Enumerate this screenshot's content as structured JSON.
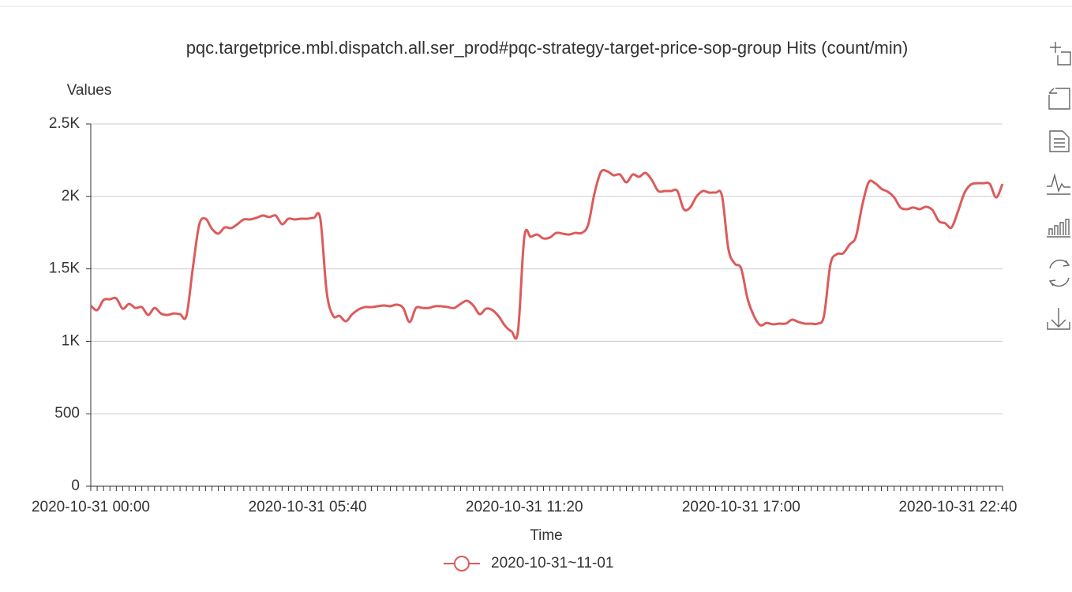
{
  "chart_data": {
    "type": "line",
    "title": "pqc.targetprice.mbl.dispatch.all.ser_prod#pqc-strategy-target-price-sop-group Hits (count/min)",
    "y_label": "Values",
    "x_label": "Time",
    "categories": [
      "2020-10-31 00:00",
      null,
      null,
      null,
      null,
      null,
      null,
      null,
      null,
      null,
      null,
      null,
      null,
      null,
      null,
      null,
      null,
      null,
      null,
      null,
      null,
      null,
      null,
      null,
      null,
      null,
      null,
      null,
      null,
      null,
      null,
      null,
      null,
      null,
      "2020-10-31 05:40",
      null,
      null,
      null,
      null,
      null,
      null,
      null,
      null,
      null,
      null,
      null,
      null,
      null,
      null,
      null,
      null,
      null,
      null,
      null,
      null,
      null,
      null,
      null,
      null,
      null,
      null,
      null,
      null,
      null,
      null,
      null,
      null,
      null,
      "2020-10-31 11:20",
      null,
      null,
      null,
      null,
      null,
      null,
      null,
      null,
      null,
      null,
      null,
      null,
      null,
      null,
      null,
      null,
      null,
      null,
      null,
      null,
      null,
      null,
      null,
      null,
      null,
      null,
      null,
      null,
      null,
      null,
      null,
      null,
      null,
      "2020-10-31 17:00",
      null,
      null,
      null,
      null,
      null,
      null,
      null,
      null,
      null,
      null,
      null,
      null,
      null,
      null,
      null,
      null,
      null,
      null,
      null,
      null,
      null,
      null,
      null,
      null,
      null,
      null,
      null,
      null,
      null,
      null,
      null,
      null,
      null,
      "2020-10-31 22:40",
      null,
      null,
      null,
      null,
      null,
      null,
      null
    ],
    "series": [
      {
        "name": "2020-10-31~11-01",
        "color": "#dc5b5b",
        "values": [
          1247,
          1215,
          1285,
          1290,
          1296,
          1225,
          1258,
          1230,
          1236,
          1182,
          1230,
          1192,
          1182,
          1192,
          1187,
          1176,
          1503,
          1803,
          1846,
          1776,
          1743,
          1786,
          1781,
          1808,
          1841,
          1841,
          1852,
          1868,
          1857,
          1868,
          1808,
          1846,
          1841,
          1846,
          1846,
          1852,
          1846,
          1340,
          1176,
          1176,
          1138,
          1187,
          1220,
          1236,
          1236,
          1242,
          1247,
          1242,
          1253,
          1230,
          1133,
          1230,
          1230,
          1230,
          1242,
          1242,
          1236,
          1230,
          1258,
          1280,
          1247,
          1187,
          1225,
          1215,
          1171,
          1106,
          1068,
          1068,
          1721,
          1721,
          1737,
          1710,
          1716,
          1748,
          1743,
          1737,
          1748,
          1748,
          1803,
          2021,
          2168,
          2173,
          2146,
          2151,
          2097,
          2151,
          2135,
          2162,
          2113,
          2037,
          2037,
          2037,
          2037,
          1912,
          1923,
          1999,
          2037,
          2026,
          2026,
          2004,
          1639,
          1536,
          1503,
          1296,
          1176,
          1111,
          1127,
          1117,
          1122,
          1122,
          1149,
          1133,
          1122,
          1122,
          1122,
          1176,
          1530,
          1601,
          1607,
          1667,
          1721,
          1939,
          2097,
          2091,
          2053,
          2032,
          1993,
          1923,
          1912,
          1923,
          1912,
          1928,
          1906,
          1830,
          1814,
          1786,
          1895,
          2021,
          2081,
          2091,
          2091,
          2086,
          1993,
          2086
        ]
      }
    ],
    "ylim": [
      0,
      2500
    ],
    "yticks": [
      0,
      500,
      {
        "value": 1000,
        "label": "1K"
      },
      {
        "value": 1500,
        "label": "1.5K"
      },
      {
        "value": 2000,
        "label": "2K"
      },
      {
        "value": 2500,
        "label": "2.5K"
      }
    ],
    "grid": true
  }
}
